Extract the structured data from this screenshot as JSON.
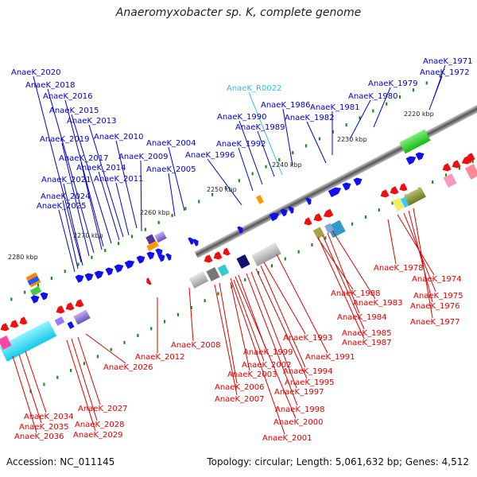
{
  "title": "Anaeromyxobacter sp. K, complete genome",
  "accession": "Accession: NC_011145",
  "topology": "Topology: circular; Length: 5,061,632 bp; Genes: 4,512",
  "colors": {
    "plus_label": "#0000cc",
    "minus_label": "#dd0000",
    "rna_label": "#33bbee",
    "scale_tick": "#1a8c1a",
    "plus_gene": "#1010ee",
    "minus_gene": "#ee1010"
  },
  "scale_labels": [
    "2220 kbp",
    "2230 kbp",
    "2240 kbp",
    "2250 kbp",
    "2260 kbp",
    "2270 kbp",
    "2280 kbp"
  ],
  "plus_labels": [
    "AnaeK_1971",
    "AnaeK_1972",
    "AnaeK_1979",
    "AnaeK_1980",
    "AnaeK_1981",
    "AnaeK_1982",
    "AnaeK_1986",
    "AnaeK_1990",
    "AnaeK_1989",
    "AnaeK_1992",
    "AnaeK_1996",
    "AnaeK_2004",
    "AnaeK_2005",
    "AnaeK_2010",
    "AnaeK_2009",
    "AnaeK_2011",
    "AnaeK_2013",
    "AnaeK_2014",
    "AnaeK_2015",
    "AnaeK_2016",
    "AnaeK_2017",
    "AnaeK_2018",
    "AnaeK_2019",
    "AnaeK_2020",
    "AnaeK_2021",
    "AnaeK_2024",
    "AnaeK_2025"
  ],
  "rna_labels": [
    "AnaeK_R0022"
  ],
  "minus_labels": [
    "AnaeK_1978",
    "AnaeK_1974",
    "AnaeK_1975",
    "AnaeK_1976",
    "AnaeK_1977",
    "AnaeK_1983",
    "AnaeK_1984",
    "AnaeK_1985",
    "AnaeK_1987",
    "AnaeK_1988",
    "AnaeK_1991",
    "AnaeK_1993",
    "AnaeK_1994",
    "AnaeK_1995",
    "AnaeK_1997",
    "AnaeK_1998",
    "AnaeK_1999",
    "AnaeK_2000",
    "AnaeK_2001",
    "AnaeK_2002",
    "AnaeK_2003",
    "AnaeK_2006",
    "AnaeK_2007",
    "AnaeK_2008",
    "AnaeK_2012",
    "AnaeK_2026",
    "AnaeK_2027",
    "AnaeK_2028",
    "AnaeK_2029",
    "AnaeK_2034",
    "AnaeK_2035",
    "AnaeK_2036"
  ]
}
